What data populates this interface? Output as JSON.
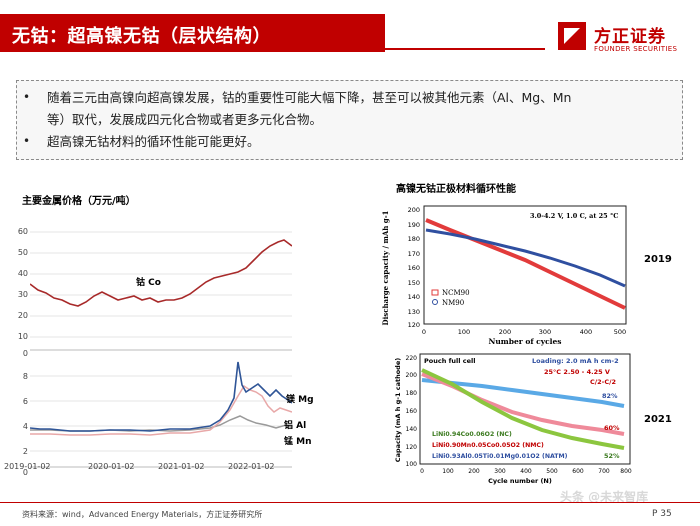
{
  "header": {
    "title": "无钴：超高镍无钴（层状结构）"
  },
  "logo": {
    "name": "方正证券",
    "en": "FOUNDER SECURITIES"
  },
  "bullets": [
    {
      "line1": "随着三元由高镍向超高镍发展，钴的重要性可能大幅下降，甚至可以被其他元素（Al、Mg、Mn",
      "line2": "等）取代，发展成四元化合物或者更多元化合物。"
    },
    {
      "line1": "超高镍无钴材料的循环性能可能更好。"
    }
  ],
  "bullet_mark": "•",
  "left_chart": {
    "title": "主要金属价格（万元/吨）",
    "top_yticks": [
      "60",
      "50",
      "40",
      "30",
      "20",
      "10",
      "0"
    ],
    "bottom_yticks": [
      "8",
      "6",
      "4",
      "2",
      "0"
    ],
    "xticks": [
      "2019-01-02",
      "2020-01-02",
      "2021-01-02",
      "2022-01-02"
    ],
    "series_labels": {
      "co": "钴 Co",
      "mg": "镁 Mg",
      "al": "铝 Al",
      "mn": "锰 Mn"
    },
    "colors": {
      "co": "#a82a2a",
      "mg": "#2f5597",
      "al": "#e8a8a8",
      "mn": "#9a9a9a"
    }
  },
  "right_top": {
    "title": "高镍无钴正极材料循环性能",
    "ylabel": "Discharge capacity / mAh g-1",
    "xlabel": "Number of cycles",
    "condition": "3.0-4.2 V, 1.0 C, at 25 °C",
    "yticks": [
      "200",
      "190",
      "180",
      "170",
      "160",
      "150",
      "140",
      "130",
      "120"
    ],
    "xticks": [
      "0",
      "100",
      "200",
      "300",
      "400",
      "500"
    ],
    "legend": [
      "NCM90",
      "NM90"
    ],
    "year": "2019"
  },
  "right_bottom": {
    "header_left": "Pouch full cell",
    "loading": "Loading: 2.0 mA h cm-2",
    "cond": "25°C   2.50 - 4.25 V",
    "rate": "C/2-C/2",
    "ylabel": "Capacity (mA h g-1 cathode)",
    "xlabel": "Cycle number (N)",
    "yticks": [
      "220",
      "200",
      "180",
      "160",
      "140",
      "120",
      "100"
    ],
    "xticks": [
      "0",
      "100",
      "200",
      "300",
      "400",
      "500",
      "600",
      "700",
      "800"
    ],
    "retention": [
      "82%",
      "60%",
      "52%"
    ],
    "legend": [
      "LiNi0.94Co0.06O2 (NC)",
      "LiNi0.90Mn0.05Co0.05O2 (NMC)",
      "LiNi0.93Al0.05Ti0.01Mg0.01O2 (NATM)"
    ],
    "year": "2021"
  },
  "footer": {
    "source": "资料来源：wind，Advanced Energy Materials，方正证券研究所",
    "page": "P 35",
    "watermark": "头条 @未来智库"
  }
}
